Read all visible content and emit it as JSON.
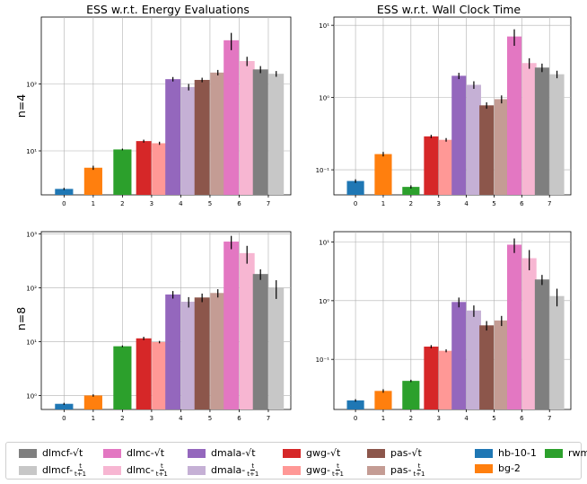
{
  "colors": {
    "hb-10-1": "#1f77b4",
    "bg-2": "#ff7f0e",
    "rwm": "#2ca02c",
    "gwg_sqrt": "#d62728",
    "gwg_frac": "#ff9896",
    "dmala_sqrt": "#9467bd",
    "dmala_frac": "#c5b0d5",
    "pas_sqrt": "#8c564b",
    "pas_frac": "#c49c94",
    "dlmc_sqrt": "#e377c2",
    "dlmc_frac": "#f7b6d2",
    "dlmcf_sqrt": "#7f7f7f",
    "dlmcf_frac": "#c7c7c7"
  },
  "column_titles": [
    "ESS w.r.t. Energy Evaluations",
    "ESS w.r.t. Wall Clock Time"
  ],
  "row_labels": [
    "n=4",
    "n=8"
  ],
  "legend": [
    {
      "key": "dlmcf_sqrt",
      "name": "dlmcf-",
      "suffix": "sqrt"
    },
    {
      "key": "dlmc_sqrt",
      "name": "dlmc-",
      "suffix": "sqrt"
    },
    {
      "key": "dmala_sqrt",
      "name": "dmala-",
      "suffix": "sqrt"
    },
    {
      "key": "gwg_sqrt",
      "name": "gwg-",
      "suffix": "sqrt"
    },
    {
      "key": "pas_sqrt",
      "name": "pas-",
      "suffix": "sqrt"
    },
    {
      "key": "hb-10-1",
      "name": "hb-10-1",
      "suffix": ""
    },
    {
      "key": "rwm",
      "name": "rwm",
      "suffix": ""
    },
    {
      "key": "dlmcf_frac",
      "name": "dlmcf-",
      "suffix": "frac"
    },
    {
      "key": "dlmc_frac",
      "name": "dlmc-",
      "suffix": "frac"
    },
    {
      "key": "dmala_frac",
      "name": "dmala-",
      "suffix": "frac"
    },
    {
      "key": "gwg_frac",
      "name": "gwg-",
      "suffix": "frac"
    },
    {
      "key": "pas_frac",
      "name": "pas-",
      "suffix": "frac"
    },
    {
      "key": "bg-2",
      "name": "bg-2",
      "suffix": ""
    }
  ],
  "legend_text": {
    "sqrt_t": "√t",
    "frac_num": "t",
    "frac_den": "t+1"
  },
  "chart_data": [
    {
      "type": "bar",
      "yscale": "log",
      "title": "ESS w.r.t. Energy Evaluations",
      "row": "n=4",
      "categories": [
        "0",
        "1",
        "2",
        "3",
        "4",
        "5",
        "6",
        "7"
      ],
      "ylim": [
        2.2,
        1000
      ],
      "yticks": [
        10,
        100
      ],
      "ytick_labels": [
        "10¹",
        "10²"
      ],
      "grid": true,
      "bars": [
        {
          "cat": 0,
          "series": "hb-10-1",
          "value": 2.7,
          "err": 0.1
        },
        {
          "cat": 1,
          "series": "bg-2",
          "value": 5.6,
          "err": 0.4
        },
        {
          "cat": 2,
          "series": "rwm",
          "value": 10.5,
          "err": 0.3
        },
        {
          "cat": 3,
          "series": "gwg_sqrt",
          "value": 14.0,
          "err": 0.7
        },
        {
          "cat": 3,
          "series": "gwg_frac",
          "value": 13.0,
          "err": 0.7
        },
        {
          "cat": 4,
          "series": "dmala_sqrt",
          "value": 118,
          "err": 9
        },
        {
          "cat": 4,
          "series": "dmala_frac",
          "value": 90,
          "err": 10
        },
        {
          "cat": 5,
          "series": "pas_sqrt",
          "value": 115,
          "err": 9
        },
        {
          "cat": 5,
          "series": "pas_frac",
          "value": 148,
          "err": 14
        },
        {
          "cat": 6,
          "series": "dlmc_sqrt",
          "value": 450,
          "err": 130
        },
        {
          "cat": 6,
          "series": "dlmc_frac",
          "value": 220,
          "err": 35
        },
        {
          "cat": 7,
          "series": "dlmcf_sqrt",
          "value": 165,
          "err": 20
        },
        {
          "cat": 7,
          "series": "dlmcf_frac",
          "value": 142,
          "err": 14
        }
      ]
    },
    {
      "type": "bar",
      "yscale": "log",
      "title": "ESS w.r.t. Wall Clock Time",
      "row": "n=4",
      "categories": [
        "0",
        "1",
        "2",
        "3",
        "4",
        "5",
        "6",
        "7"
      ],
      "ylim": [
        0.045,
        13
      ],
      "yticks": [
        0.1,
        1,
        10
      ],
      "ytick_labels": [
        "10⁻¹",
        "10⁰",
        "10¹"
      ],
      "grid": true,
      "bars": [
        {
          "cat": 0,
          "series": "hb-10-1",
          "value": 0.07,
          "err": 0.004
        },
        {
          "cat": 1,
          "series": "bg-2",
          "value": 0.165,
          "err": 0.012
        },
        {
          "cat": 2,
          "series": "rwm",
          "value": 0.058,
          "err": 0.003
        },
        {
          "cat": 3,
          "series": "gwg_sqrt",
          "value": 0.29,
          "err": 0.015
        },
        {
          "cat": 3,
          "series": "gwg_frac",
          "value": 0.26,
          "err": 0.015
        },
        {
          "cat": 4,
          "series": "dmala_sqrt",
          "value": 2.0,
          "err": 0.2
        },
        {
          "cat": 4,
          "series": "dmala_frac",
          "value": 1.5,
          "err": 0.18
        },
        {
          "cat": 5,
          "series": "pas_sqrt",
          "value": 0.78,
          "err": 0.08
        },
        {
          "cat": 5,
          "series": "pas_frac",
          "value": 0.95,
          "err": 0.12
        },
        {
          "cat": 6,
          "series": "dlmc_sqrt",
          "value": 7.0,
          "err": 1.8
        },
        {
          "cat": 6,
          "series": "dlmc_frac",
          "value": 3.0,
          "err": 0.5
        },
        {
          "cat": 7,
          "series": "dlmcf_sqrt",
          "value": 2.6,
          "err": 0.35
        },
        {
          "cat": 7,
          "series": "dlmcf_frac",
          "value": 2.1,
          "err": 0.25
        }
      ]
    },
    {
      "type": "bar",
      "yscale": "log",
      "title": "",
      "row": "n=8",
      "categories": [
        "0",
        "1",
        "2",
        "3",
        "4",
        "5",
        "6",
        "7"
      ],
      "ylim": [
        0.55,
        1100
      ],
      "yticks": [
        1,
        10,
        100,
        1000
      ],
      "ytick_labels": [
        "10⁰",
        "10¹",
        "10²",
        "10³"
      ],
      "grid": true,
      "bars": [
        {
          "cat": 0,
          "series": "hb-10-1",
          "value": 0.7,
          "err": 0.03
        },
        {
          "cat": 1,
          "series": "bg-2",
          "value": 1.0,
          "err": 0.05
        },
        {
          "cat": 2,
          "series": "rwm",
          "value": 8.2,
          "err": 0.3
        },
        {
          "cat": 3,
          "series": "gwg_sqrt",
          "value": 11.5,
          "err": 0.8
        },
        {
          "cat": 3,
          "series": "gwg_frac",
          "value": 9.8,
          "err": 0.5
        },
        {
          "cat": 4,
          "series": "dmala_sqrt",
          "value": 75,
          "err": 12
        },
        {
          "cat": 4,
          "series": "dmala_frac",
          "value": 55,
          "err": 12
        },
        {
          "cat": 5,
          "series": "pas_sqrt",
          "value": 66,
          "err": 12
        },
        {
          "cat": 5,
          "series": "pas_frac",
          "value": 80,
          "err": 14
        },
        {
          "cat": 6,
          "series": "dlmc_sqrt",
          "value": 720,
          "err": 200
        },
        {
          "cat": 6,
          "series": "dlmc_frac",
          "value": 440,
          "err": 160
        },
        {
          "cat": 7,
          "series": "dlmcf_sqrt",
          "value": 180,
          "err": 40
        },
        {
          "cat": 7,
          "series": "dlmcf_frac",
          "value": 100,
          "err": 38
        }
      ]
    },
    {
      "type": "bar",
      "yscale": "log",
      "title": "",
      "row": "n=8",
      "categories": [
        "0",
        "1",
        "2",
        "3",
        "4",
        "5",
        "6",
        "7"
      ],
      "ylim": [
        0.014,
        15
      ],
      "yticks": [
        0.1,
        1,
        10
      ],
      "ytick_labels": [
        "10⁻¹",
        "10⁰",
        "10¹"
      ],
      "grid": true,
      "bars": [
        {
          "cat": 0,
          "series": "hb-10-1",
          "value": 0.02,
          "err": 0.001
        },
        {
          "cat": 1,
          "series": "bg-2",
          "value": 0.029,
          "err": 0.002
        },
        {
          "cat": 2,
          "series": "rwm",
          "value": 0.043,
          "err": 0.002
        },
        {
          "cat": 3,
          "series": "gwg_sqrt",
          "value": 0.165,
          "err": 0.01
        },
        {
          "cat": 3,
          "series": "gwg_frac",
          "value": 0.14,
          "err": 0.008
        },
        {
          "cat": 4,
          "series": "dmala_sqrt",
          "value": 0.95,
          "err": 0.18
        },
        {
          "cat": 4,
          "series": "dmala_frac",
          "value": 0.68,
          "err": 0.15
        },
        {
          "cat": 5,
          "series": "pas_sqrt",
          "value": 0.38,
          "err": 0.07
        },
        {
          "cat": 5,
          "series": "pas_frac",
          "value": 0.46,
          "err": 0.09
        },
        {
          "cat": 6,
          "series": "dlmc_sqrt",
          "value": 9.0,
          "err": 2.5
        },
        {
          "cat": 6,
          "series": "dlmc_frac",
          "value": 5.3,
          "err": 2.0
        },
        {
          "cat": 7,
          "series": "dlmcf_sqrt",
          "value": 2.3,
          "err": 0.45
        },
        {
          "cat": 7,
          "series": "dlmcf_frac",
          "value": 1.2,
          "err": 0.4
        }
      ]
    }
  ]
}
